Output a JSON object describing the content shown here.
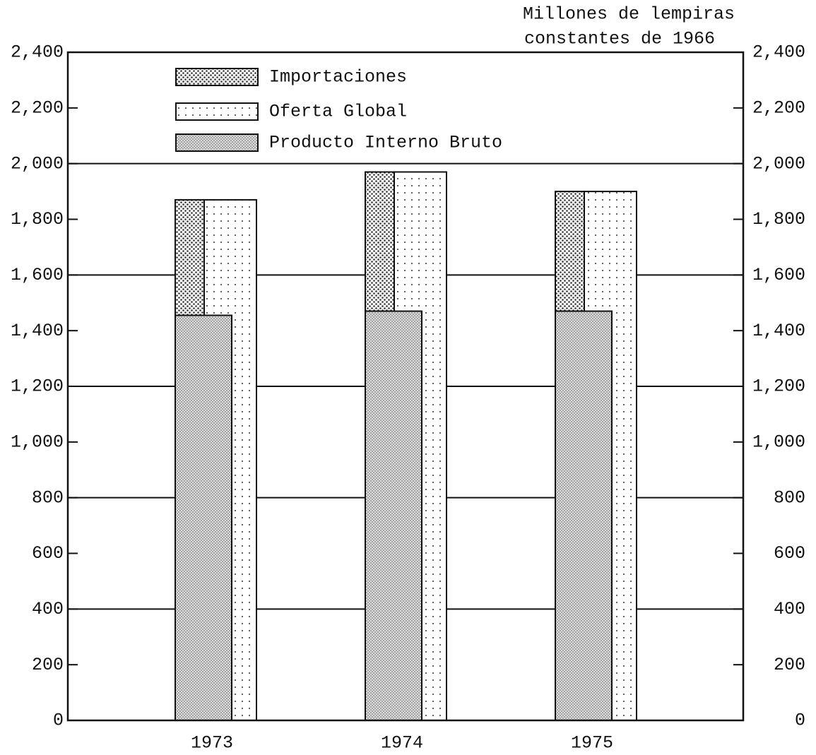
{
  "chart_data": {
    "type": "overlap_bar",
    "unit_label": [
      "Millones de lempiras",
      "constantes de 1966"
    ],
    "categories": [
      "1973",
      "1974",
      "1975"
    ],
    "series": [
      {
        "name": "Importaciones",
        "color": "#333333",
        "values": [
          415,
          500,
          430
        ]
      },
      {
        "name": "Oferta Global",
        "color": "#555555",
        "values": [
          1870,
          1970,
          1900
        ]
      },
      {
        "name": "Producto Interno Bruto",
        "color": "#777777",
        "values": [
          1455,
          1470,
          1470
        ]
      }
    ],
    "ylim": [
      0,
      2400
    ],
    "yticks": [
      0,
      {
        "value": 200,
        "label": "200"
      },
      400,
      600,
      800,
      {
        "value": 1000,
        "label": "1,000"
      },
      {
        "value": 1200,
        "label": "1,200"
      },
      {
        "value": 1400,
        "label": "1,400"
      },
      {
        "value": 1600,
        "label": "1,600"
      },
      {
        "value": 1800,
        "label": "1,800"
      },
      {
        "value": 2000,
        "label": "2,000"
      },
      {
        "value": 2200,
        "label": "2,200"
      },
      {
        "value": 2400,
        "label": "2,400"
      }
    ],
    "grid": true
  }
}
